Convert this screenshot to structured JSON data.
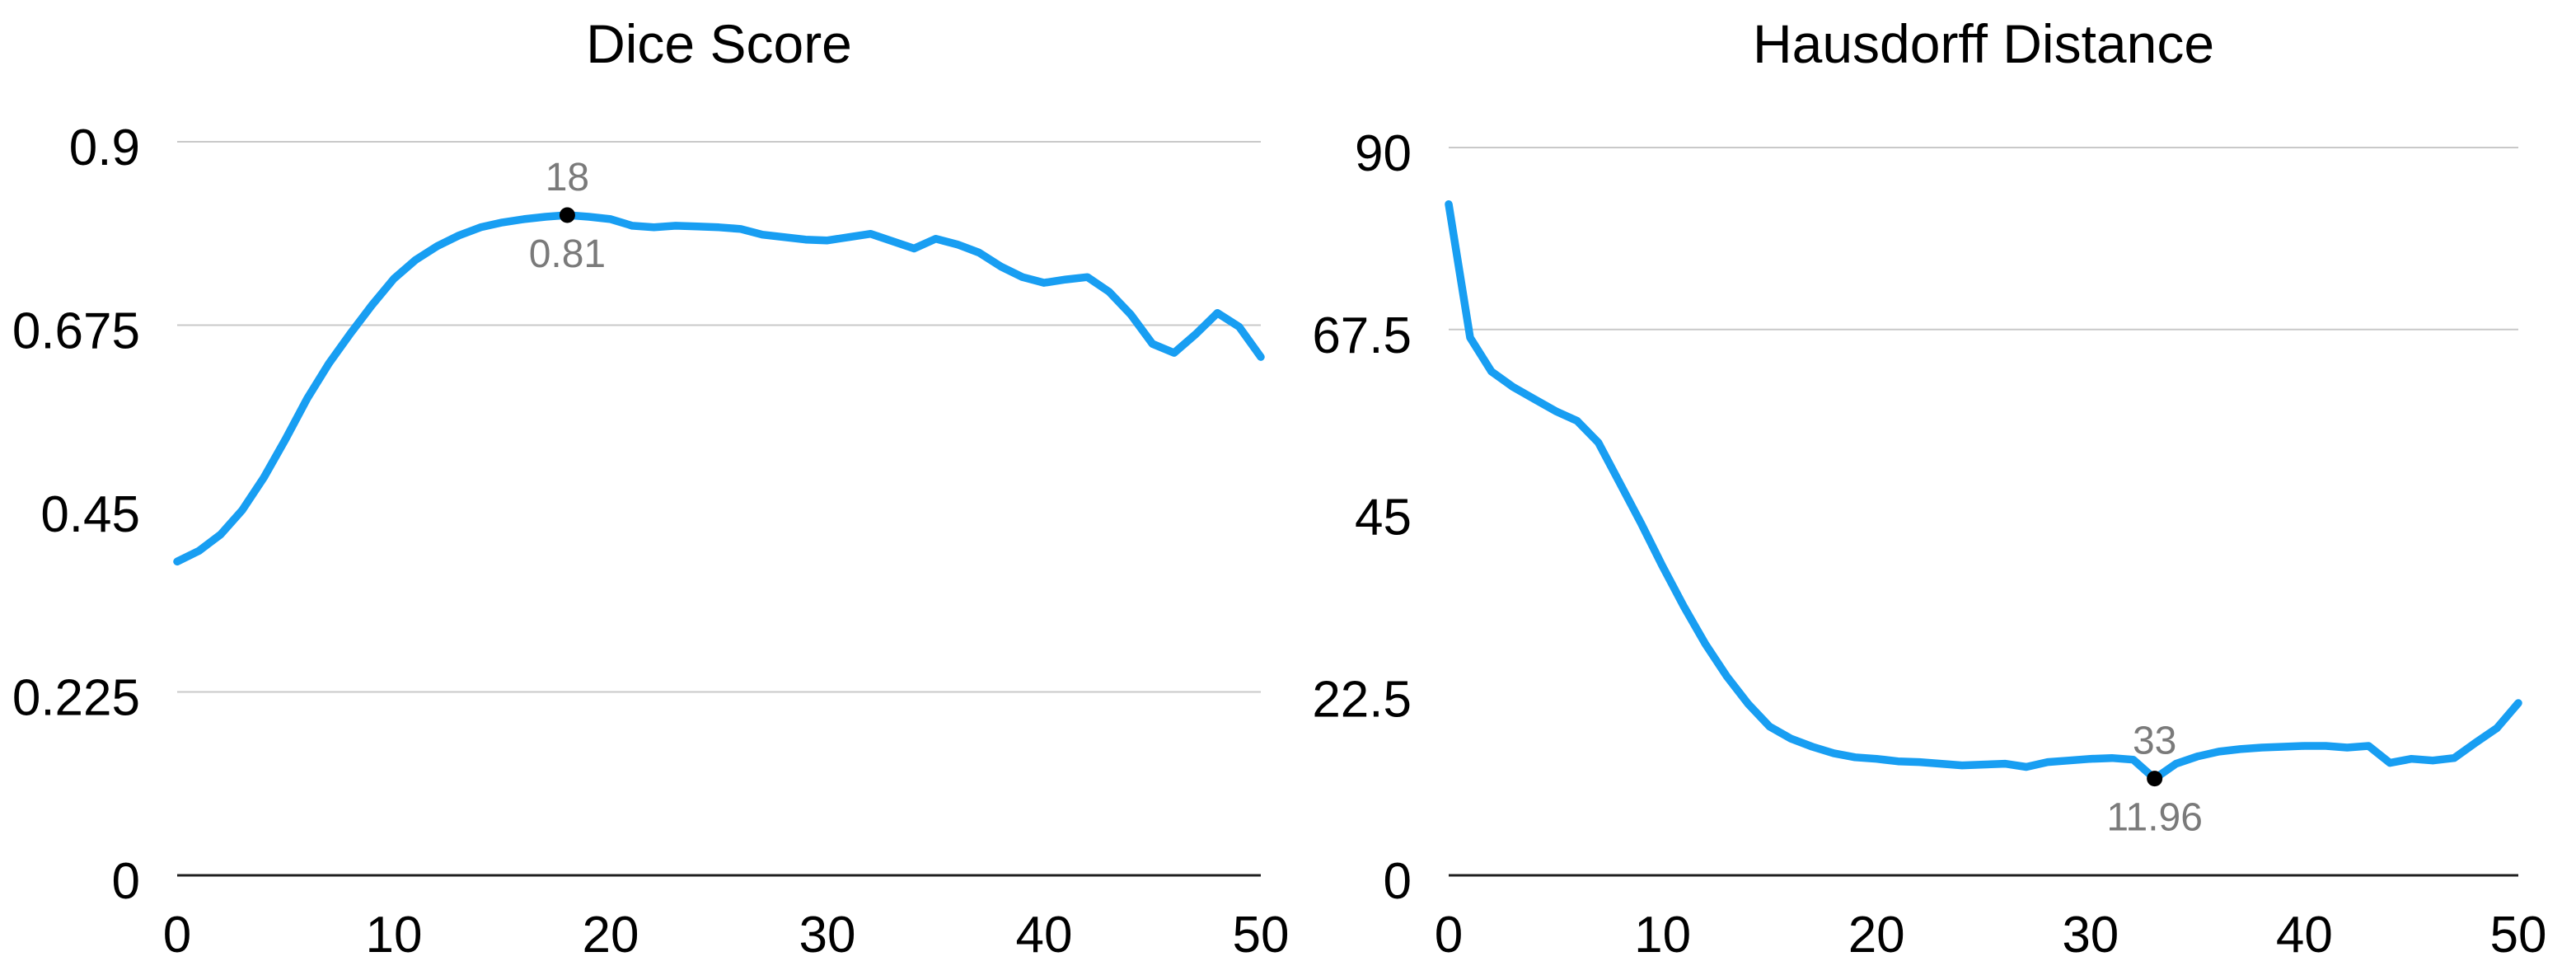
{
  "page": {
    "background": "#ffffff"
  },
  "style": {
    "line_color": "#189ef2",
    "grid_color": "#c9c9c9",
    "axis_color": "#1f1f1f",
    "tick_text_color": "#000000",
    "annotation_color": "#7a7a7a",
    "marker_color": "#000000"
  },
  "chart_data": [
    {
      "id": "dice-score",
      "type": "line",
      "title": "Dice Score",
      "xlabel": "",
      "ylabel": "",
      "xlim": [
        0,
        50
      ],
      "ylim": [
        0,
        0.9
      ],
      "legend": "none",
      "x_ticks": [
        0,
        10,
        20,
        30,
        40,
        50
      ],
      "y_ticks": [
        {
          "value": 0.9,
          "label": "0.9",
          "gridline": true
        },
        {
          "value": 0.675,
          "label": "0.675",
          "gridline": true
        },
        {
          "value": 0.45,
          "label": "0.45",
          "gridline": false
        },
        {
          "value": 0.225,
          "label": "0.225",
          "gridline": true
        },
        {
          "value": 0,
          "label": "0",
          "gridline": false
        }
      ],
      "x": [
        0,
        1,
        2,
        3,
        4,
        5,
        6,
        7,
        8,
        9,
        10,
        11,
        12,
        13,
        14,
        15,
        16,
        17,
        18,
        19,
        20,
        21,
        22,
        23,
        24,
        25,
        26,
        27,
        28,
        29,
        30,
        31,
        32,
        33,
        34,
        35,
        36,
        37,
        38,
        39,
        40,
        41,
        42,
        43,
        44,
        45,
        46,
        47,
        48,
        49,
        50
      ],
      "values": [
        0.385,
        0.398,
        0.418,
        0.448,
        0.488,
        0.535,
        0.585,
        0.628,
        0.665,
        0.7,
        0.732,
        0.755,
        0.772,
        0.785,
        0.795,
        0.801,
        0.805,
        0.808,
        0.81,
        0.808,
        0.805,
        0.797,
        0.795,
        0.797,
        0.796,
        0.795,
        0.793,
        0.786,
        0.783,
        0.78,
        0.779,
        0.783,
        0.787,
        0.778,
        0.769,
        0.781,
        0.774,
        0.764,
        0.747,
        0.734,
        0.727,
        0.731,
        0.734,
        0.716,
        0.688,
        0.652,
        0.641,
        0.664,
        0.69,
        0.673,
        0.636
      ],
      "marked_point": {
        "x": 18,
        "y": 0.81,
        "label_x": "18",
        "label_value": "0.81"
      }
    },
    {
      "id": "hausdorff-distance",
      "type": "line",
      "title": "Hausdorff Distance",
      "xlabel": "",
      "ylabel": "",
      "xlim": [
        0,
        50
      ],
      "ylim": [
        0,
        90
      ],
      "legend": "none",
      "x_ticks": [
        0,
        10,
        20,
        30,
        40,
        50
      ],
      "y_ticks": [
        {
          "value": 90,
          "label": "90",
          "gridline": true
        },
        {
          "value": 67.5,
          "label": "67.5",
          "gridline": true
        },
        {
          "value": 45,
          "label": "45",
          "gridline": false
        },
        {
          "value": 22.5,
          "label": "22.5",
          "gridline": false
        },
        {
          "value": 0,
          "label": "0",
          "gridline": false
        }
      ],
      "x": [
        0,
        1,
        2,
        3,
        4,
        5,
        6,
        7,
        8,
        9,
        10,
        11,
        12,
        13,
        14,
        15,
        16,
        17,
        18,
        19,
        20,
        21,
        22,
        23,
        24,
        25,
        26,
        27,
        28,
        29,
        30,
        31,
        32,
        33,
        34,
        35,
        36,
        37,
        38,
        39,
        40,
        41,
        42,
        43,
        44,
        45,
        46,
        47,
        48,
        49,
        50
      ],
      "values": [
        83.0,
        66.5,
        62.3,
        60.4,
        58.9,
        57.4,
        56.2,
        53.5,
        48.5,
        43.5,
        38.2,
        33.2,
        28.6,
        24.6,
        21.2,
        18.4,
        16.9,
        15.9,
        15.1,
        14.6,
        14.4,
        14.1,
        14.0,
        13.8,
        13.6,
        13.7,
        13.8,
        13.4,
        14.0,
        14.2,
        14.4,
        14.5,
        14.3,
        11.96,
        13.8,
        14.7,
        15.3,
        15.6,
        15.8,
        15.9,
        16.0,
        16.0,
        15.8,
        16.0,
        13.9,
        14.4,
        14.2,
        14.5,
        16.4,
        18.2,
        21.3
      ],
      "marked_point": {
        "x": 33,
        "y": 11.96,
        "label_x": "33",
        "label_value": "11.96"
      }
    }
  ]
}
